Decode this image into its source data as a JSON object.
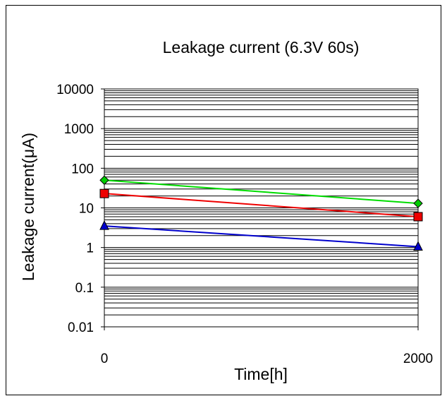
{
  "chart_data": {
    "type": "line",
    "title": "Leakage current (6.3V 60s)",
    "xlabel": "Time[h]",
    "ylabel": "Leakage current(μA)",
    "x": [
      0,
      2000
    ],
    "x_tick_labels": [
      "0",
      "2000"
    ],
    "xlim": [
      0,
      2000
    ],
    "y_scale": "log",
    "ylim": [
      0.01,
      10000
    ],
    "y_tick_values": [
      0.01,
      0.1,
      1,
      10,
      100,
      1000,
      10000
    ],
    "y_tick_labels": [
      "0.01",
      "0.1",
      "1",
      "10",
      "100",
      "1000",
      "10000"
    ],
    "grid": "horizontal minor and major lines",
    "legend": "none",
    "series": [
      {
        "values": [
          50,
          13
        ],
        "color": "#00dd00",
        "marker": "diamond",
        "marker_color": "#00cc00"
      },
      {
        "values": [
          23,
          6
        ],
        "color": "#ee0000",
        "marker": "square",
        "marker_color": "#ee0000"
      },
      {
        "values": [
          3.5,
          1.05
        ],
        "color": "#0000cc",
        "marker": "triangle",
        "marker_color": "#0000cc"
      }
    ]
  }
}
